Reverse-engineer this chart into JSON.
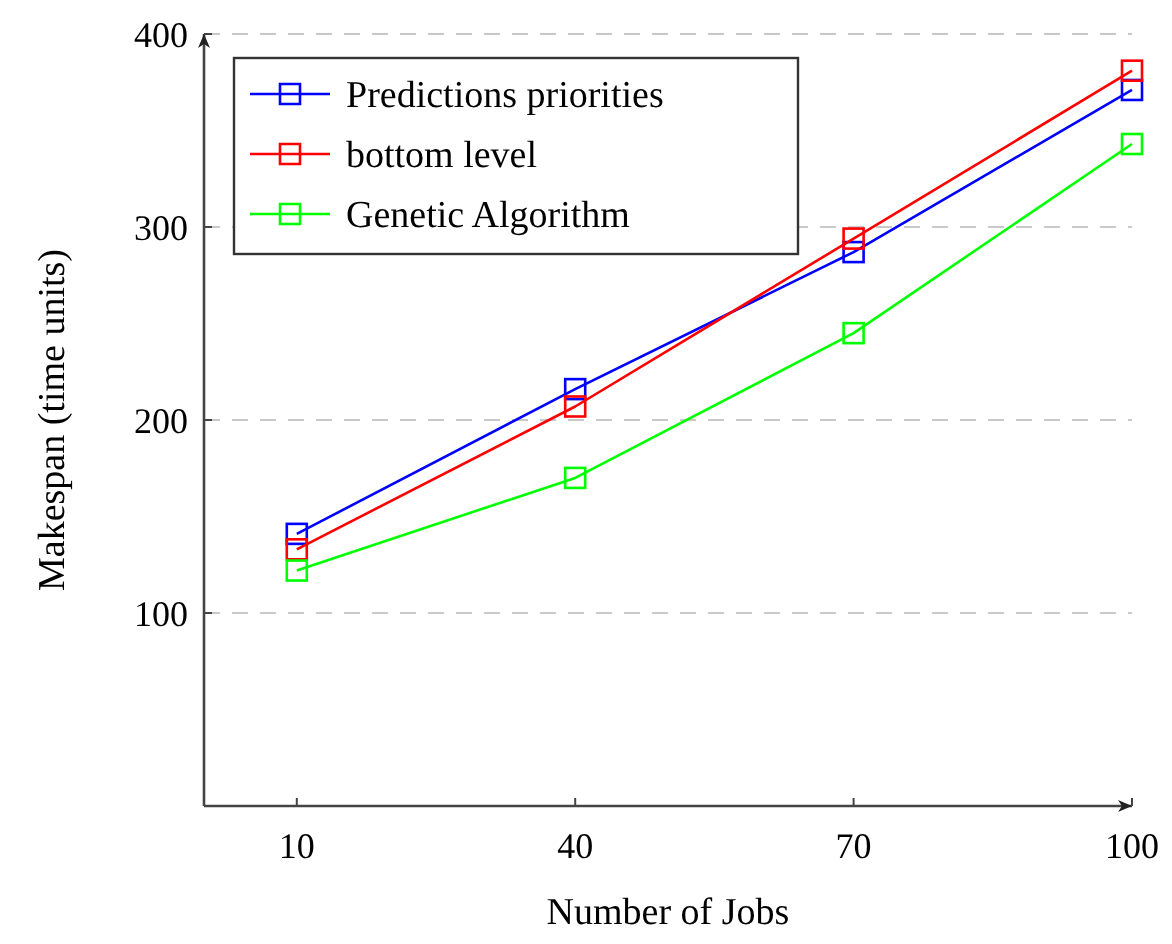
{
  "chart_data": {
    "type": "line",
    "xlabel": "Number of Jobs",
    "ylabel": "Makespan (time units)",
    "x": [
      10,
      40,
      70,
      100
    ],
    "series": [
      {
        "name": "Predictions priorities",
        "color": "#0000ff",
        "values": [
          141,
          216,
          287,
          371
        ]
      },
      {
        "name": "bottom level",
        "color": "#ff0000",
        "values": [
          133,
          207,
          294,
          381
        ]
      },
      {
        "name": "Genetic Algorithm",
        "color": "#00ff00",
        "values": [
          122,
          170,
          245,
          343
        ]
      }
    ],
    "xlim": [
      0,
      100
    ],
    "ylim": [
      0,
      400
    ],
    "xticks": [
      10,
      40,
      70,
      100
    ],
    "yticks": [
      100,
      200,
      300,
      400
    ],
    "grid": "y",
    "legend": "top left",
    "marker": "square",
    "line_style": "solid"
  }
}
